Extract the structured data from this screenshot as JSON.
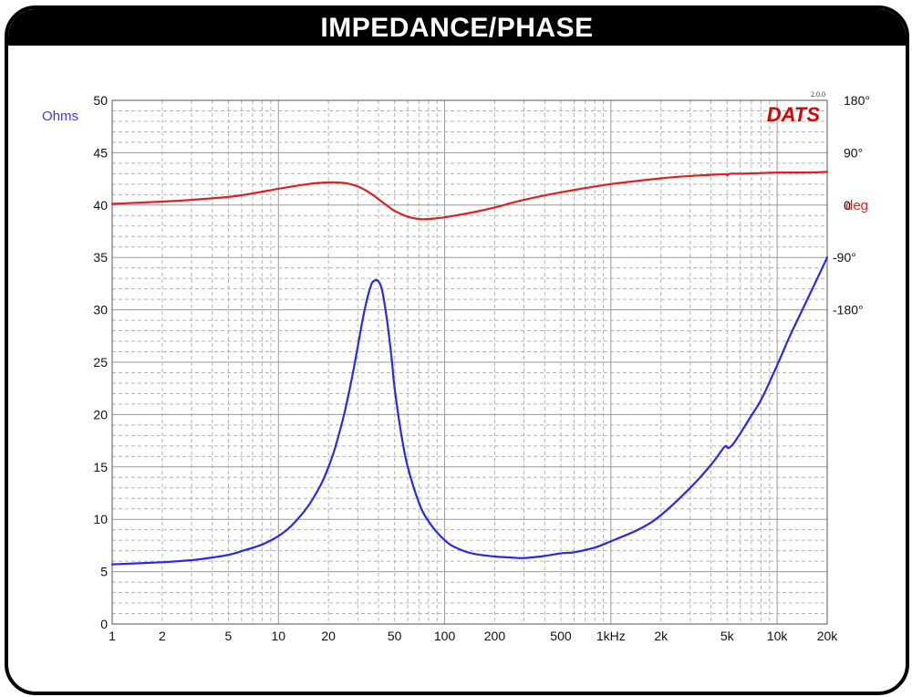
{
  "chart_data": {
    "type": "line",
    "title": "IMPEDANCE/PHASE",
    "logo": "DATS",
    "logo_version": "2.0.0",
    "x_scale": "log",
    "xlim": [
      1,
      20000
    ],
    "x_ticks": [
      {
        "v": 1,
        "t": "1"
      },
      {
        "v": 2,
        "t": "2"
      },
      {
        "v": 5,
        "t": "5"
      },
      {
        "v": 10,
        "t": "10"
      },
      {
        "v": 20,
        "t": "20"
      },
      {
        "v": 50,
        "t": "50"
      },
      {
        "v": 100,
        "t": "100"
      },
      {
        "v": 200,
        "t": "200"
      },
      {
        "v": 500,
        "t": "500"
      },
      {
        "v": 1000,
        "t": "1kHz"
      },
      {
        "v": 2000,
        "t": "2k"
      },
      {
        "v": 5000,
        "t": "5k"
      },
      {
        "v": 10000,
        "t": "10k"
      },
      {
        "v": 20000,
        "t": "20k"
      }
    ],
    "ylabel": "Ohms",
    "ylim": [
      0,
      50
    ],
    "y_ticks": [
      0,
      5,
      10,
      15,
      20,
      25,
      30,
      35,
      40,
      45,
      50
    ],
    "y2label": "deg",
    "y2_ticks": [
      {
        "v": 180,
        "t": "180°"
      },
      {
        "v": 90,
        "t": "90°"
      },
      {
        "v": 0,
        "t": "0"
      },
      {
        "v": -90,
        "t": "-90°"
      },
      {
        "v": -180,
        "t": "-180°"
      }
    ],
    "grid": true,
    "colors": {
      "impedance": "#2a2ae6",
      "phase": "#e02020",
      "ohms_label": "#3a3af0",
      "deg_label": "#e02020",
      "logo": "#e00000",
      "grid": "#b4b4b4"
    },
    "series": [
      {
        "key": "impedance",
        "axis": "left",
        "x": [
          1,
          2,
          3,
          4,
          5,
          6,
          8,
          10,
          12,
          15,
          18,
          20,
          22,
          25,
          28,
          30,
          33,
          36,
          38,
          40,
          42,
          45,
          48,
          50,
          55,
          60,
          70,
          80,
          100,
          120,
          150,
          200,
          250,
          300,
          400,
          500,
          600,
          800,
          1000,
          1500,
          2000,
          3000,
          4000,
          4600,
          4900,
          5100,
          5500,
          6000,
          7000,
          8000,
          10000,
          12000,
          15000,
          20000
        ],
        "y": [
          5.7,
          5.9,
          6.1,
          6.35,
          6.6,
          6.95,
          7.6,
          8.4,
          9.4,
          11.2,
          13.3,
          15.0,
          16.9,
          20.2,
          23.9,
          26.5,
          30.0,
          32.3,
          32.8,
          32.7,
          31.9,
          29.0,
          25.3,
          22.5,
          18.0,
          15.0,
          11.6,
          9.8,
          8.0,
          7.2,
          6.7,
          6.45,
          6.35,
          6.3,
          6.5,
          6.75,
          6.85,
          7.3,
          7.9,
          9.1,
          10.4,
          13.0,
          15.2,
          16.5,
          17.0,
          16.8,
          17.3,
          18.2,
          19.9,
          21.4,
          24.7,
          27.6,
          30.8,
          35.0
        ]
      },
      {
        "key": "phase",
        "axis": "right",
        "x": [
          1,
          2,
          3,
          5,
          7,
          10,
          15,
          20,
          25,
          30,
          35,
          40,
          45,
          50,
          60,
          70,
          80,
          100,
          150,
          200,
          300,
          500,
          1000,
          2000,
          3000,
          4000,
          4900,
          5000,
          5200,
          6000,
          8000,
          10000,
          15000,
          20000
        ],
        "y": [
          2,
          6,
          9,
          14,
          20,
          28,
          36,
          39,
          38,
          32,
          22,
          10,
          -1,
          -10,
          -20,
          -24,
          -24,
          -21,
          -12,
          -4,
          9,
          22,
          36,
          46,
          50,
          52,
          53,
          51,
          54,
          54,
          55,
          56,
          56,
          57
        ]
      }
    ]
  }
}
